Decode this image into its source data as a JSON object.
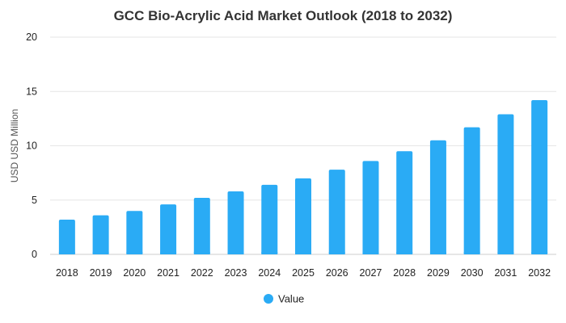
{
  "chart_data": {
    "type": "bar",
    "title": "GCC Bio-Acrylic Acid Market Outlook (2018 to 2032)",
    "xlabel": "",
    "ylabel": "USD USD Million",
    "ylim": [
      0,
      20
    ],
    "yticks": [
      0,
      5,
      10,
      15,
      20
    ],
    "grid": true,
    "legend_position": "bottom",
    "categories": [
      "2018",
      "2019",
      "2020",
      "2021",
      "2022",
      "2023",
      "2024",
      "2025",
      "2026",
      "2027",
      "2028",
      "2029",
      "2030",
      "2031",
      "2032"
    ],
    "series": [
      {
        "name": "Value",
        "color": "#2aabf5",
        "values": [
          3.2,
          3.6,
          4.0,
          4.6,
          5.2,
          5.8,
          6.4,
          7.0,
          7.8,
          8.6,
          9.5,
          10.5,
          11.7,
          12.9,
          14.2
        ]
      }
    ]
  }
}
